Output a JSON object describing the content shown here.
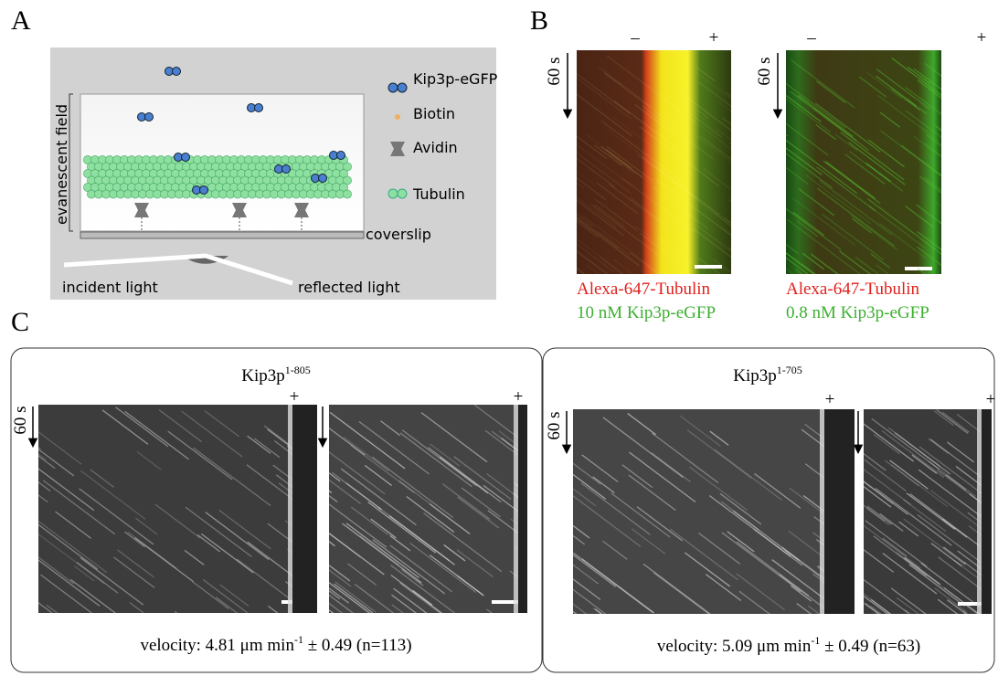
{
  "panels": {
    "a": {
      "label": "A",
      "legend": [
        "Kip3p-eGFP",
        "Biotin",
        "Avidin",
        "Tubulin"
      ],
      "evanescent_label": "evanescent field",
      "coverslip_label": "coverslip",
      "incident_label": "incident light",
      "reflected_label": "reflected light"
    },
    "b": {
      "label": "B",
      "kymographs": [
        {
          "minus": "–",
          "plus": "+",
          "time": "60 s",
          "line1": "Alexa-647-Tubulin",
          "line2": "10 nM Kip3p-eGFP"
        },
        {
          "minus": "–",
          "plus": "+",
          "time": "60 s",
          "line1": "Alexa-647-Tubulin",
          "line2": "0.8 nM Kip3p-eGFP"
        }
      ]
    },
    "c": {
      "label": "C",
      "groups": [
        {
          "name": "Kip3p",
          "superscript": "1-805",
          "plus_signs": [
            "+",
            "+"
          ],
          "time": "60 s",
          "velocity_prefix": "velocity: 4.81 μm min",
          "velocity_exponent": "-1",
          "velocity_suffix": " ± 0.49 (n=113)"
        },
        {
          "name": "Kip3p",
          "superscript": "1-705",
          "plus_signs": [
            "+",
            "+"
          ],
          "time": "60 s",
          "velocity_prefix": "velocity: 5.09 μm min",
          "velocity_exponent": "-1",
          "velocity_suffix": " ± 0.49 (n=63)"
        }
      ]
    }
  }
}
